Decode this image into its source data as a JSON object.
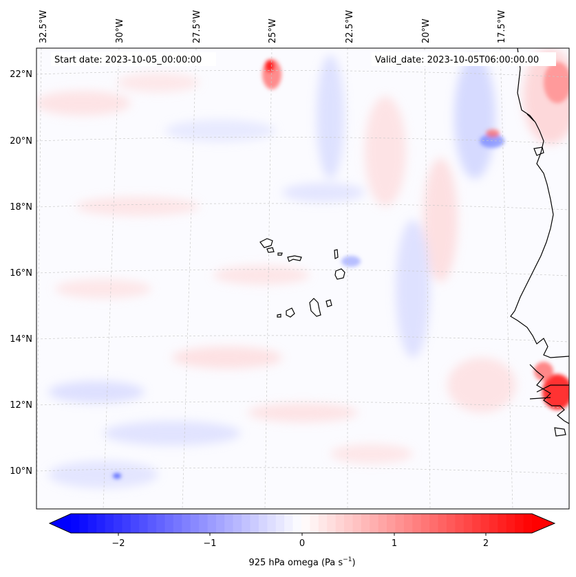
{
  "header": {
    "start_date": "Start date: 2023-10-05_00:00:00",
    "valid_date": "Valid_date: 2023-10-05T06:00:00.00"
  },
  "map": {
    "region": "Eastern tropical Atlantic / Cape Verde / West Africa coast",
    "background_color": "#fbfbff",
    "coastline_color": "#000000",
    "gridline_color": "#cccccc",
    "longitude_ticks": [
      "32.5°W",
      "30°W",
      "27.5°W",
      "25°W",
      "22.5°W",
      "20°W",
      "17.5°W"
    ],
    "latitude_ticks": [
      "22°N",
      "20°N",
      "18°N",
      "16°N",
      "14°N",
      "12°N",
      "10°N"
    ]
  },
  "colorbar": {
    "label": "925 hPa omega (Pa s",
    "label_superscript": "−1",
    "label_end": ")",
    "ticks": [
      "−2",
      "−1",
      "0",
      "1",
      "2"
    ],
    "min_value": -2.7,
    "max_value": 2.7,
    "color_min": "#0000ff",
    "color_mid": "#ffffff",
    "color_max": "#ff0000",
    "extend": "both"
  }
}
